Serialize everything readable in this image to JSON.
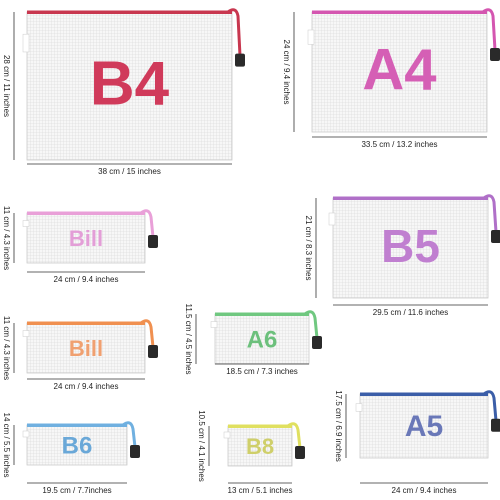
{
  "bags": [
    {
      "label": "B4",
      "width": "38 cm / 15 inches",
      "height": "28 cm / 11  inches"
    },
    {
      "label": "A4",
      "width": "33.5 cm / 13.2 inches",
      "height": "24 cm / 9.4 inches"
    },
    {
      "label": "Bill",
      "width": "24 cm / 9.4 inches",
      "height": "11 cm / 4.3 inches"
    },
    {
      "label": "B5",
      "width": "29.5 cm / 11.6 inches",
      "height": "21 cm / 8.3 inches"
    },
    {
      "label": "Bill",
      "width": "24 cm / 9.4 inches",
      "height": "11 cm / 4.3 inches"
    },
    {
      "label": "A6",
      "width": "18.5 cm / 7.3 inches",
      "height": "11.5 cm / 4.5 inches"
    },
    {
      "label": "A5",
      "width": "24 cm / 9.4 inches",
      "height": "17.5 cm / 6.9 inches"
    },
    {
      "label": "B6",
      "width": "19.5 cm / 7.7inches",
      "height": "14 cm / 5.5 inches"
    },
    {
      "label": "B8",
      "width": "13 cm / 5.1 inches",
      "height": "10.5 cm / 4.1 inches"
    }
  ]
}
